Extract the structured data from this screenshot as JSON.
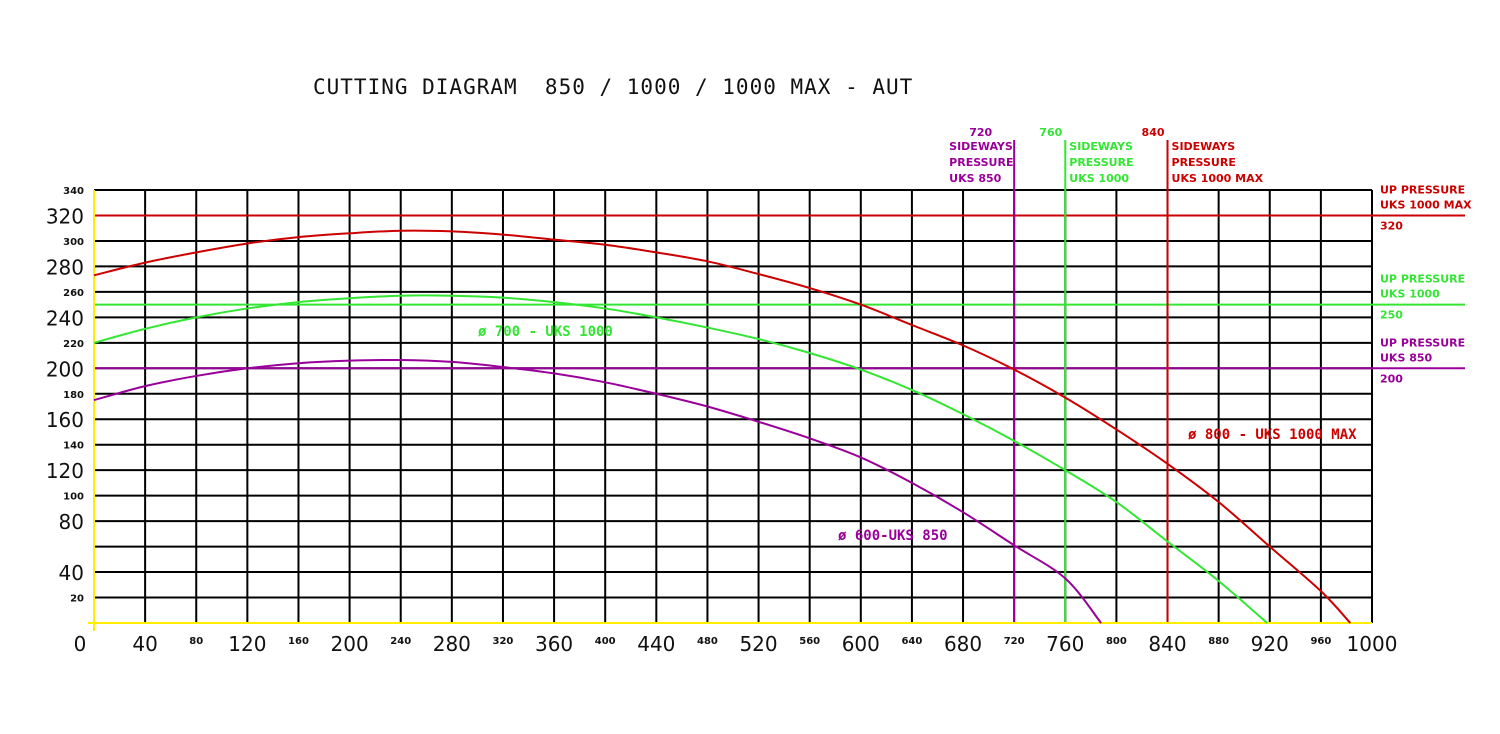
{
  "chart_data": {
    "type": "line",
    "title": "CUTTING DIAGRAM  850 / 1000 / 1000 MAX - AUT",
    "xlabel": "",
    "ylabel": "",
    "xlim": [
      0,
      1000
    ],
    "ylim": [
      0,
      340
    ],
    "grid": true,
    "x_ticks": [
      {
        "v": 0,
        "label": "0",
        "size": "large"
      },
      {
        "v": 40,
        "label": "40",
        "size": "large"
      },
      {
        "v": 80,
        "label": "80",
        "size": "small"
      },
      {
        "v": 120,
        "label": "120",
        "size": "large"
      },
      {
        "v": 160,
        "label": "160",
        "size": "small"
      },
      {
        "v": 200,
        "label": "200",
        "size": "large"
      },
      {
        "v": 240,
        "label": "240",
        "size": "small"
      },
      {
        "v": 280,
        "label": "280",
        "size": "large"
      },
      {
        "v": 320,
        "label": "320",
        "size": "small"
      },
      {
        "v": 360,
        "label": "360",
        "size": "large"
      },
      {
        "v": 400,
        "label": "400",
        "size": "small"
      },
      {
        "v": 440,
        "label": "440",
        "size": "large"
      },
      {
        "v": 480,
        "label": "480",
        "size": "small"
      },
      {
        "v": 520,
        "label": "520",
        "size": "large"
      },
      {
        "v": 560,
        "label": "560",
        "size": "small"
      },
      {
        "v": 600,
        "label": "600",
        "size": "large"
      },
      {
        "v": 640,
        "label": "640",
        "size": "small"
      },
      {
        "v": 680,
        "label": "680",
        "size": "large"
      },
      {
        "v": 720,
        "label": "720",
        "size": "small"
      },
      {
        "v": 760,
        "label": "760",
        "size": "large"
      },
      {
        "v": 800,
        "label": "800",
        "size": "small"
      },
      {
        "v": 840,
        "label": "840",
        "size": "large"
      },
      {
        "v": 880,
        "label": "880",
        "size": "small"
      },
      {
        "v": 920,
        "label": "920",
        "size": "large"
      },
      {
        "v": 960,
        "label": "960",
        "size": "small"
      },
      {
        "v": 1000,
        "label": "1000",
        "size": "large"
      }
    ],
    "y_ticks": [
      {
        "v": 340,
        "label": "340",
        "size": "small"
      },
      {
        "v": 320,
        "label": "320",
        "size": "large"
      },
      {
        "v": 300,
        "label": "300",
        "size": "small"
      },
      {
        "v": 280,
        "label": "280",
        "size": "large"
      },
      {
        "v": 260,
        "label": "260",
        "size": "small"
      },
      {
        "v": 240,
        "label": "240",
        "size": "large"
      },
      {
        "v": 220,
        "label": "220",
        "size": "small"
      },
      {
        "v": 200,
        "label": "200",
        "size": "large"
      },
      {
        "v": 180,
        "label": "180",
        "size": "small"
      },
      {
        "v": 160,
        "label": "160",
        "size": "large"
      },
      {
        "v": 140,
        "label": "140",
        "size": "small"
      },
      {
        "v": 120,
        "label": "120",
        "size": "large"
      },
      {
        "v": 100,
        "label": "100",
        "size": "small"
      },
      {
        "v": 80,
        "label": "80",
        "size": "large"
      },
      {
        "v": 60,
        "label": "",
        "size": "small"
      },
      {
        "v": 40,
        "label": "40",
        "size": "large"
      },
      {
        "v": 20,
        "label": "20",
        "size": "small"
      }
    ],
    "series": [
      {
        "name": "ø 800 - UKS 1000 MAX",
        "color": "#cc0000",
        "x": [
          0,
          40,
          80,
          120,
          160,
          200,
          240,
          280,
          320,
          360,
          400,
          440,
          480,
          520,
          560,
          600,
          640,
          680,
          720,
          760,
          800,
          840,
          880,
          920,
          960,
          983
        ],
        "y": [
          273,
          283,
          291,
          298,
          303,
          306,
          308,
          307.5,
          305,
          301,
          297,
          291,
          284,
          274,
          263,
          250,
          234,
          218,
          199,
          177,
          152,
          125,
          95,
          60,
          25,
          0
        ]
      },
      {
        "name": "ø 700 - UKS 1000",
        "color": "#33e633",
        "x": [
          0,
          40,
          80,
          120,
          160,
          200,
          240,
          280,
          320,
          360,
          400,
          440,
          480,
          520,
          560,
          600,
          640,
          680,
          720,
          760,
          800,
          840,
          880,
          918
        ],
        "y": [
          220,
          231,
          240,
          247,
          252,
          255,
          257,
          257,
          255.5,
          252,
          247,
          240,
          232,
          223,
          212,
          199,
          183,
          164,
          143,
          120,
          95,
          64,
          33,
          0
        ]
      },
      {
        "name": "ø 600-UKS 850",
        "color": "#990099",
        "x": [
          0,
          40,
          80,
          120,
          160,
          200,
          240,
          280,
          320,
          360,
          400,
          440,
          480,
          520,
          560,
          600,
          640,
          680,
          720,
          760,
          788
        ],
        "y": [
          175,
          186,
          194,
          200,
          204,
          206,
          206.5,
          205,
          201,
          196,
          189,
          180,
          170,
          158,
          145,
          130,
          110,
          87,
          61,
          35,
          0
        ]
      }
    ],
    "reference_lines": {
      "horizontal": [
        {
          "value": 320,
          "color": "#cc0000",
          "label_lines": [
            "UP PRESSURE",
            "UKS 1000 MAX"
          ],
          "value_label": "320"
        },
        {
          "value": 250,
          "color": "#33e633",
          "label_lines": [
            "UP PRESSURE",
            "UKS 1000"
          ],
          "value_label": "250"
        },
        {
          "value": 200,
          "color": "#990099",
          "label_lines": [
            "UP PRESSURE",
            "UKS 850"
          ],
          "value_label": "200"
        }
      ],
      "vertical": [
        {
          "value": 720,
          "color": "#990099",
          "value_label": "720",
          "label_lines": [
            "SIDEWAYS",
            "PRESSURE",
            "UKS 850"
          ],
          "side": "left"
        },
        {
          "value": 760,
          "color": "#33e633",
          "value_label": "760",
          "label_lines": [
            "SIDEWAYS",
            "PRESSURE",
            "UKS 1000"
          ],
          "side": "right"
        },
        {
          "value": 840,
          "color": "#cc0000",
          "value_label": "840",
          "label_lines": [
            "SIDEWAYS",
            "PRESSURE",
            "UKS 1000 MAX"
          ],
          "side": "right"
        }
      ]
    },
    "axis_color": "#ffee00"
  }
}
